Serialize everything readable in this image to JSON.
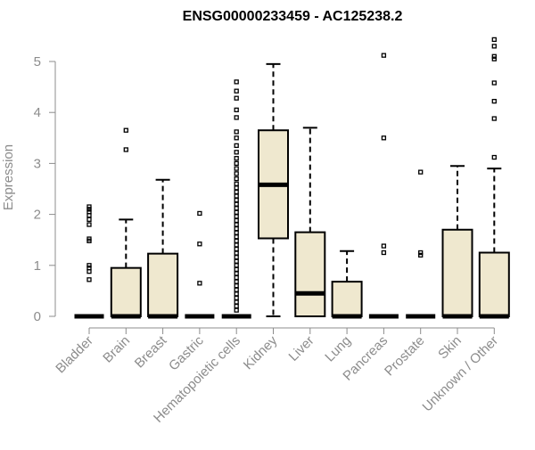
{
  "chart_data": {
    "type": "box",
    "title": "ENSG00000233459 - AC125238.2",
    "xlabel": "",
    "ylabel": "Expression",
    "ylim": [
      0,
      5.5
    ],
    "yticks": [
      0,
      1,
      2,
      3,
      4,
      5
    ],
    "grid": false,
    "colors": {
      "box_fill": "#efe8cf",
      "box_stroke": "#000000",
      "axis": "#8c8c8c"
    },
    "categories": [
      "Bladder",
      "Brain",
      "Breast",
      "Gastric",
      "Hematopoietic cells",
      "Kidney",
      "Liver",
      "Lung",
      "Pancreas",
      "Prostate",
      "Skin",
      "Unknown / Other"
    ],
    "boxes": [
      {
        "q1": 0,
        "median": 0,
        "q3": 0,
        "whislo": 0,
        "whishi": 0,
        "outliers": [
          0.72,
          0.88,
          0.95,
          1.0,
          1.48,
          1.52,
          1.8,
          1.9,
          1.98,
          2.05,
          2.1,
          2.15
        ]
      },
      {
        "q1": 0,
        "median": 0,
        "q3": 0.95,
        "whislo": 0,
        "whishi": 1.9,
        "outliers": [
          3.27,
          3.65
        ]
      },
      {
        "q1": 0,
        "median": 0,
        "q3": 1.23,
        "whislo": 0,
        "whishi": 2.68,
        "outliers": []
      },
      {
        "q1": 0,
        "median": 0,
        "q3": 0,
        "whislo": 0,
        "whishi": 0,
        "outliers": [
          0.65,
          1.42,
          2.02
        ]
      },
      {
        "q1": 0,
        "median": 0,
        "q3": 0,
        "whislo": 0,
        "whishi": 0,
        "outliers": [
          0.12,
          0.2,
          0.28,
          0.36,
          0.44,
          0.52,
          0.6,
          0.68,
          0.76,
          0.84,
          0.92,
          1.0,
          1.08,
          1.16,
          1.24,
          1.32,
          1.4,
          1.48,
          1.56,
          1.64,
          1.72,
          1.8,
          1.88,
          1.96,
          2.04,
          2.12,
          2.2,
          2.28,
          2.36,
          2.44,
          2.52,
          2.6,
          2.7,
          2.8,
          2.9,
          3.0,
          3.1,
          3.22,
          3.35,
          3.5,
          3.62,
          3.9,
          4.05,
          4.28,
          4.42,
          4.6
        ]
      },
      {
        "q1": 1.53,
        "median": 2.58,
        "q3": 3.65,
        "whislo": 0,
        "whishi": 4.95,
        "outliers": []
      },
      {
        "q1": 0,
        "median": 0.45,
        "q3": 1.65,
        "whislo": 0,
        "whishi": 3.7,
        "outliers": []
      },
      {
        "q1": 0,
        "median": 0,
        "q3": 0.68,
        "whislo": 0,
        "whishi": 1.28,
        "outliers": []
      },
      {
        "q1": 0,
        "median": 0,
        "q3": 0,
        "whislo": 0,
        "whishi": 0,
        "outliers": [
          1.25,
          1.38,
          3.5,
          5.12
        ]
      },
      {
        "q1": 0,
        "median": 0,
        "q3": 0,
        "whislo": 0,
        "whishi": 0,
        "outliers": [
          1.2,
          1.25,
          2.83
        ]
      },
      {
        "q1": 0,
        "median": 0,
        "q3": 1.7,
        "whislo": 0,
        "whishi": 2.95,
        "outliers": []
      },
      {
        "q1": 0,
        "median": 0,
        "q3": 1.25,
        "whislo": 0,
        "whishi": 2.9,
        "outliers": [
          3.12,
          3.88,
          4.22,
          4.58,
          5.05,
          5.1,
          5.3,
          5.43
        ]
      }
    ]
  }
}
